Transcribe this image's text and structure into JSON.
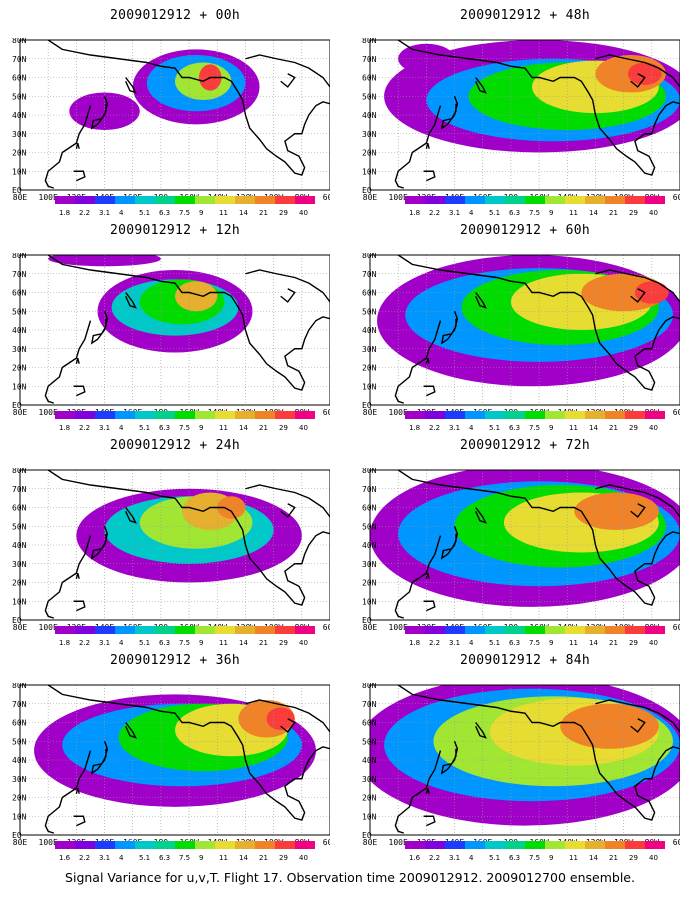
{
  "footer": "Signal Variance for u,v,T. Flight 17. Observation time 2009012912. 2009012700 ensemble.",
  "panel_titles": [
    "2009012912 + 00h",
    "2009012912 + 48h",
    "2009012912 + 12h",
    "2009012912 + 60h",
    "2009012912 + 24h",
    "2009012912 + 72h",
    "2009012912 + 36h",
    "2009012912 + 84h"
  ],
  "lon_labels": [
    "80E",
    "100E",
    "120E",
    "140E",
    "160E",
    "180",
    "160W",
    "140W",
    "120W",
    "100W",
    "80W",
    "60W"
  ],
  "lat_labels": [
    "EQ",
    "10N",
    "20N",
    "30N",
    "40N",
    "50N",
    "60N",
    "70N",
    "80N"
  ],
  "colorbar_labels": [
    "1.8",
    "2.2",
    "3.1",
    "4",
    "5.1",
    "6.3",
    "7.5",
    "9",
    "11",
    "14",
    "21",
    "29",
    "40"
  ],
  "colorbar_colors": [
    "#a000c8",
    "#8200dc",
    "#1e3cff",
    "#0096ff",
    "#00c8c8",
    "#00d28c",
    "#00dc00",
    "#a0e632",
    "#e6dc32",
    "#e6af2d",
    "#f08228",
    "#fa3c3c",
    "#f00082"
  ],
  "colorbar_bottom_labels": [
    "1.6",
    "2.2",
    "3.1",
    "4",
    "5.1",
    "6.3",
    "7.5",
    "9",
    "11",
    "14",
    "21",
    "29",
    "40"
  ],
  "colorbar_label_sets": [
    0,
    0,
    0,
    0,
    0,
    0,
    1,
    1
  ],
  "map_data": {
    "type": "filled-contour",
    "lon_range": [
      80,
      300
    ],
    "lat_range": [
      0,
      80
    ],
    "boxes": [
      "#a000c8",
      "#00dc00",
      "#a000c8",
      "#a000c8",
      "#a000c8",
      "#a000c8",
      "#a000c8",
      "#00dc00"
    ]
  }
}
